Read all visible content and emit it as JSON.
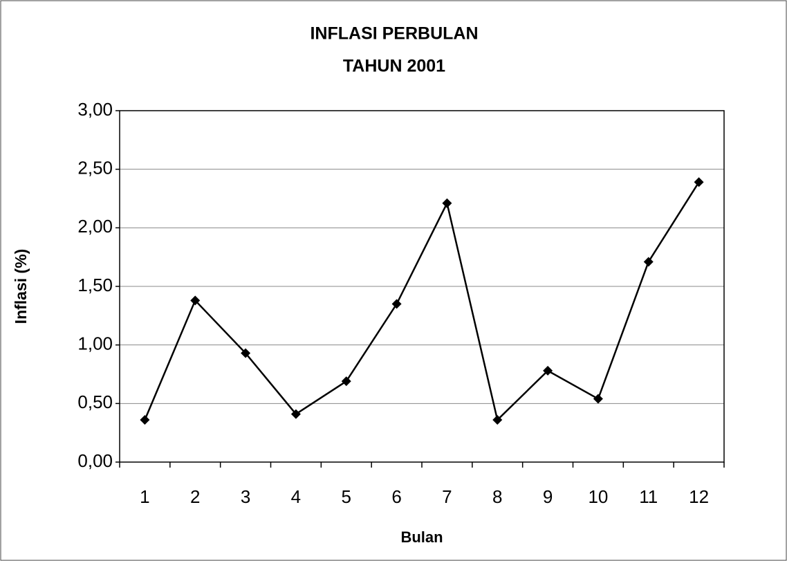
{
  "chart_data": {
    "type": "line",
    "title": "INFLASI PERBULAN",
    "subtitle": "TAHUN 2001",
    "x_label": "Bulan",
    "y_label": "Inflasi (%)",
    "categories": [
      "1",
      "2",
      "3",
      "4",
      "5",
      "6",
      "7",
      "8",
      "9",
      "10",
      "11",
      "12"
    ],
    "series": [
      {
        "name": "Inflasi",
        "color": "#000000",
        "values": [
          0.36,
          1.38,
          0.93,
          0.41,
          0.69,
          1.35,
          2.21,
          0.36,
          0.78,
          0.54,
          1.71,
          2.39
        ]
      }
    ],
    "ylim": [
      0,
      3
    ],
    "yticks": [
      {
        "value": 0,
        "label": "0,00"
      },
      {
        "value": 0.5,
        "label": "0,50"
      },
      {
        "value": 1,
        "label": "1,00"
      },
      {
        "value": 1.5,
        "label": "1,50"
      },
      {
        "value": 2,
        "label": "2,00"
      },
      {
        "value": 2.5,
        "label": "2,50"
      },
      {
        "value": 3,
        "label": "3,00"
      }
    ],
    "grid": true
  }
}
